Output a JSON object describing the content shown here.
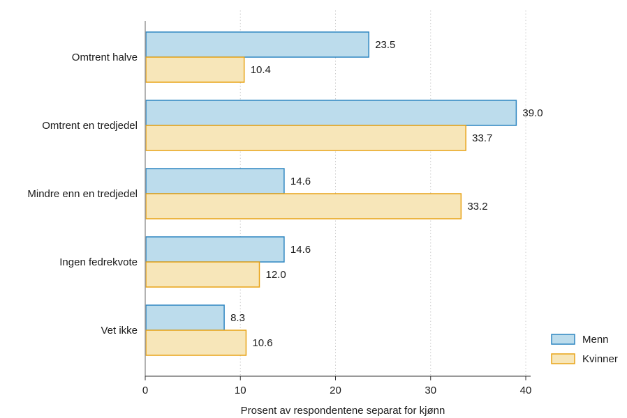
{
  "chart_data": {
    "type": "bar",
    "orientation": "horizontal",
    "categories": [
      "Omtrent halve",
      "Omtrent en tredjedel",
      "Mindre enn en tredjedel",
      "Ingen fedrekvote",
      "Vet ikke"
    ],
    "series": [
      {
        "name": "Menn",
        "color": "#bcdcec",
        "stroke": "#2e86c1",
        "values": [
          23.5,
          39.0,
          14.6,
          14.6,
          8.3
        ],
        "labels": [
          "23.5",
          "39.0",
          "14.6",
          "14.6",
          "8.3"
        ]
      },
      {
        "name": "Kvinner",
        "color": "#f7e6b9",
        "stroke": "#e8a317",
        "values": [
          10.4,
          33.7,
          33.2,
          12.0,
          10.6
        ],
        "labels": [
          "10.4",
          "33.7",
          "33.2",
          "12.0",
          "10.6"
        ]
      }
    ],
    "xlabel": "Prosent av respondentene separat for kjønn",
    "xlim": [
      0,
      40
    ],
    "xticks": [
      0,
      10,
      20,
      30,
      40
    ],
    "xtick_labels": [
      "0",
      "10",
      "20",
      "30",
      "40"
    ],
    "grid": "vertical dotted",
    "legend_position": "bottom-right"
  }
}
